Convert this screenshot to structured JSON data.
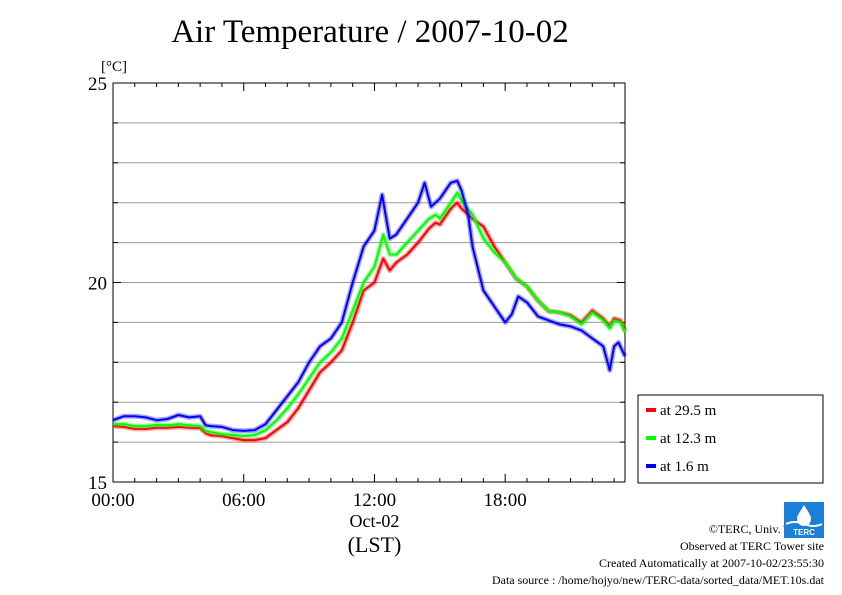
{
  "chart_data": {
    "type": "line",
    "title": "Air Temperature / 2007-10-02",
    "ylabel": "[°C]",
    "ylim": [
      15,
      25
    ],
    "yticks": [
      15,
      20,
      25
    ],
    "xlim": [
      0,
      23.5
    ],
    "xticks": [
      {
        "value": 0,
        "label": "00:00"
      },
      {
        "value": 6,
        "label": "06:00"
      },
      {
        "value": 12,
        "label": "12:00"
      },
      {
        "value": 18,
        "label": "18:00"
      }
    ],
    "date_label": "Oct-02",
    "time_zone_label": "(LST)",
    "grid": true,
    "legend_position": "right",
    "series": [
      {
        "name": "at 29.5 m",
        "color": "#ff0000",
        "points": [
          [
            0,
            16.4
          ],
          [
            0.5,
            16.38
          ],
          [
            1,
            16.33
          ],
          [
            1.5,
            16.33
          ],
          [
            2,
            16.36
          ],
          [
            2.5,
            16.36
          ],
          [
            3,
            16.38
          ],
          [
            3.5,
            16.36
          ],
          [
            4,
            16.35
          ],
          [
            4.25,
            16.22
          ],
          [
            4.5,
            16.17
          ],
          [
            5,
            16.15
          ],
          [
            5.5,
            16.1
          ],
          [
            6,
            16.05
          ],
          [
            6.5,
            16.05
          ],
          [
            7,
            16.1
          ],
          [
            7.5,
            16.3
          ],
          [
            8,
            16.5
          ],
          [
            8.5,
            16.85
          ],
          [
            9,
            17.3
          ],
          [
            9.5,
            17.75
          ],
          [
            10,
            18.0
          ],
          [
            10.5,
            18.3
          ],
          [
            11,
            19.0
          ],
          [
            11.5,
            19.8
          ],
          [
            12,
            20.0
          ],
          [
            12.4,
            20.6
          ],
          [
            12.7,
            20.3
          ],
          [
            13,
            20.5
          ],
          [
            13.5,
            20.7
          ],
          [
            14,
            21.0
          ],
          [
            14.5,
            21.35
          ],
          [
            14.8,
            21.5
          ],
          [
            15,
            21.45
          ],
          [
            15.5,
            21.85
          ],
          [
            15.8,
            22.0
          ],
          [
            16,
            21.85
          ],
          [
            16.5,
            21.6
          ],
          [
            17,
            21.4
          ],
          [
            17.5,
            20.9
          ],
          [
            18,
            20.5
          ],
          [
            18.5,
            20.1
          ],
          [
            19,
            19.9
          ],
          [
            19.5,
            19.55
          ],
          [
            20,
            19.28
          ],
          [
            20.5,
            19.25
          ],
          [
            21,
            19.18
          ],
          [
            21.5,
            19.0
          ],
          [
            22,
            19.3
          ],
          [
            22.5,
            19.1
          ],
          [
            22.8,
            18.9
          ],
          [
            23,
            19.1
          ],
          [
            23.3,
            19.05
          ],
          [
            23.5,
            18.8
          ]
        ]
      },
      {
        "name": "at 12.3 m",
        "color": "#00ff00",
        "points": [
          [
            0,
            16.45
          ],
          [
            0.5,
            16.45
          ],
          [
            1,
            16.4
          ],
          [
            1.5,
            16.4
          ],
          [
            2,
            16.43
          ],
          [
            2.5,
            16.42
          ],
          [
            3,
            16.45
          ],
          [
            3.5,
            16.42
          ],
          [
            4,
            16.4
          ],
          [
            4.25,
            16.28
          ],
          [
            4.5,
            16.25
          ],
          [
            5,
            16.2
          ],
          [
            5.5,
            16.18
          ],
          [
            6,
            16.15
          ],
          [
            6.5,
            16.18
          ],
          [
            7,
            16.3
          ],
          [
            7.5,
            16.55
          ],
          [
            8,
            16.85
          ],
          [
            8.5,
            17.2
          ],
          [
            9,
            17.6
          ],
          [
            9.5,
            18.0
          ],
          [
            10,
            18.25
          ],
          [
            10.5,
            18.6
          ],
          [
            11,
            19.3
          ],
          [
            11.5,
            20.0
          ],
          [
            12,
            20.4
          ],
          [
            12.4,
            21.2
          ],
          [
            12.7,
            20.7
          ],
          [
            13,
            20.7
          ],
          [
            13.5,
            21.0
          ],
          [
            14,
            21.3
          ],
          [
            14.5,
            21.6
          ],
          [
            14.8,
            21.7
          ],
          [
            15,
            21.6
          ],
          [
            15.5,
            22.0
          ],
          [
            15.8,
            22.25
          ],
          [
            16,
            22.05
          ],
          [
            16.5,
            21.7
          ],
          [
            17,
            21.1
          ],
          [
            17.5,
            20.75
          ],
          [
            18,
            20.5
          ],
          [
            18.5,
            20.1
          ],
          [
            19,
            19.9
          ],
          [
            19.5,
            19.55
          ],
          [
            20,
            19.28
          ],
          [
            20.5,
            19.25
          ],
          [
            21,
            19.15
          ],
          [
            21.5,
            18.95
          ],
          [
            22,
            19.25
          ],
          [
            22.5,
            19.05
          ],
          [
            22.8,
            18.85
          ],
          [
            23,
            19.05
          ],
          [
            23.3,
            19.0
          ],
          [
            23.5,
            18.75
          ]
        ]
      },
      {
        "name": "at 1.6 m",
        "color": "#0000ff",
        "points": [
          [
            0,
            16.55
          ],
          [
            0.5,
            16.65
          ],
          [
            1,
            16.65
          ],
          [
            1.5,
            16.62
          ],
          [
            2,
            16.55
          ],
          [
            2.5,
            16.58
          ],
          [
            3,
            16.68
          ],
          [
            3.5,
            16.62
          ],
          [
            4,
            16.65
          ],
          [
            4.25,
            16.42
          ],
          [
            4.5,
            16.4
          ],
          [
            5,
            16.38
          ],
          [
            5.5,
            16.3
          ],
          [
            6,
            16.28
          ],
          [
            6.5,
            16.3
          ],
          [
            7,
            16.45
          ],
          [
            7.5,
            16.8
          ],
          [
            8,
            17.15
          ],
          [
            8.5,
            17.5
          ],
          [
            9,
            18.0
          ],
          [
            9.5,
            18.4
          ],
          [
            10,
            18.6
          ],
          [
            10.5,
            19.0
          ],
          [
            11,
            20.0
          ],
          [
            11.5,
            20.9
          ],
          [
            12,
            21.3
          ],
          [
            12.35,
            22.2
          ],
          [
            12.7,
            21.1
          ],
          [
            13,
            21.2
          ],
          [
            13.5,
            21.6
          ],
          [
            14,
            22.0
          ],
          [
            14.3,
            22.5
          ],
          [
            14.6,
            21.9
          ],
          [
            15,
            22.1
          ],
          [
            15.5,
            22.5
          ],
          [
            15.8,
            22.55
          ],
          [
            16,
            22.3
          ],
          [
            16.3,
            21.7
          ],
          [
            16.5,
            20.9
          ],
          [
            17,
            19.8
          ],
          [
            17.5,
            19.4
          ],
          [
            18,
            19.0
          ],
          [
            18.3,
            19.2
          ],
          [
            18.6,
            19.65
          ],
          [
            19,
            19.5
          ],
          [
            19.5,
            19.15
          ],
          [
            20,
            19.05
          ],
          [
            20.5,
            18.95
          ],
          [
            21,
            18.9
          ],
          [
            21.5,
            18.8
          ],
          [
            22,
            18.6
          ],
          [
            22.5,
            18.4
          ],
          [
            22.8,
            17.8
          ],
          [
            23,
            18.4
          ],
          [
            23.2,
            18.5
          ],
          [
            23.5,
            18.15
          ]
        ]
      }
    ]
  },
  "footer": {
    "copyright": "©TERC, Univ. Tsukuba",
    "observed": "Observed at TERC Tower site",
    "created": "Created Automatically at 2007-10-02/23:55:30",
    "source": "Data source : /home/hojyo/new/TERC-data/sorted_data/MET.10s.dat"
  },
  "logo_text": "TERC",
  "logo_color": "#1a7fd6"
}
